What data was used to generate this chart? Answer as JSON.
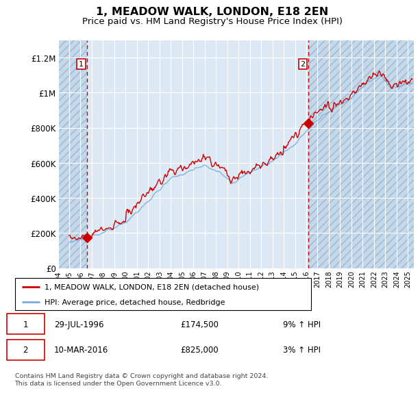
{
  "title": "1, MEADOW WALK, LONDON, E18 2EN",
  "subtitle": "Price paid vs. HM Land Registry's House Price Index (HPI)",
  "title_fontsize": 11.5,
  "subtitle_fontsize": 9.5,
  "ylim": [
    0,
    1300000
  ],
  "yticks": [
    0,
    200000,
    400000,
    600000,
    800000,
    1000000,
    1200000
  ],
  "ytick_labels": [
    "£0",
    "£200K",
    "£400K",
    "£600K",
    "£800K",
    "£1M",
    "£1.2M"
  ],
  "hpi_color": "#7aaddc",
  "price_color": "#cc0000",
  "dashed_line_color": "#cc0000",
  "background_color": "#dce9f5",
  "hatch_bg_color": "#c5d8ea",
  "legend_label_price": "1, MEADOW WALK, LONDON, E18 2EN (detached house)",
  "legend_label_hpi": "HPI: Average price, detached house, Redbridge",
  "transaction1_date": "29-JUL-1996",
  "transaction1_price": 174500,
  "transaction1_hpi_pct": "9% ↑ HPI",
  "transaction1_label": "1",
  "transaction1_year": 1996.57,
  "transaction2_date": "10-MAR-2016",
  "transaction2_price": 825000,
  "transaction2_hpi_pct": "3% ↑ HPI",
  "transaction2_label": "2",
  "transaction2_year": 2016.19,
  "footer": "Contains HM Land Registry data © Crown copyright and database right 2024.\nThis data is licensed under the Open Government Licence v3.0.",
  "xstart": 1994.0,
  "xend": 2025.5
}
